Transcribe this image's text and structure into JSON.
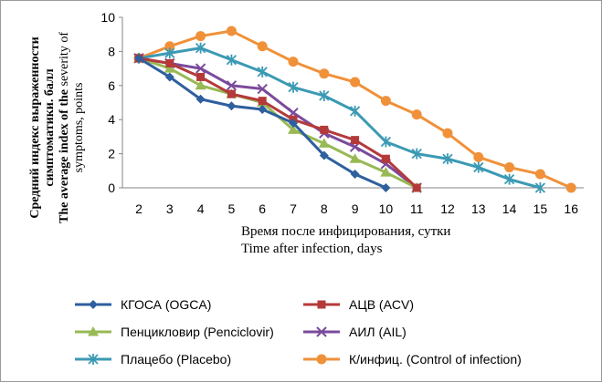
{
  "chart_data": {
    "type": "line",
    "x": [
      2,
      3,
      4,
      5,
      6,
      7,
      8,
      9,
      10,
      11,
      12,
      13,
      14,
      15,
      16
    ],
    "xlim": [
      2,
      16
    ],
    "ylim": [
      0,
      10
    ],
    "yticks": [
      0,
      2,
      4,
      6,
      8,
      10
    ],
    "xlabel_ru": "Время после инфицирования, сутки",
    "xlabel_en": "Time after infection, days",
    "ylabel_ru_line1": "Средний индекс выраженности",
    "ylabel_ru_line2": "симптоматики. балл",
    "ylabel_en_bold": "The average index of the",
    "ylabel_en_rest": " severity of",
    "ylabel_en_line2": "symptoms, points",
    "legend_position": "bottom",
    "series": [
      {
        "name": "КГОСА (OGCA)",
        "color": "#2e5f9e",
        "marker": "diamond",
        "x": [
          2,
          3,
          4,
          5,
          6,
          7,
          8,
          9,
          10
        ],
        "values": [
          7.6,
          6.5,
          5.2,
          4.8,
          4.6,
          3.8,
          1.9,
          0.8,
          0
        ]
      },
      {
        "name": "АЦВ (ACV)",
        "color": "#b43a3a",
        "marker": "square",
        "x": [
          2,
          3,
          4,
          5,
          6,
          7,
          8,
          9,
          10,
          11
        ],
        "values": [
          7.6,
          7.3,
          6.5,
          5.5,
          5.1,
          4.0,
          3.4,
          2.8,
          1.7,
          0
        ]
      },
      {
        "name": "Пенцикловир (Penciclovir)",
        "color": "#98b954",
        "marker": "triangle",
        "x": [
          2,
          3,
          4,
          5,
          6,
          7,
          8,
          9,
          10,
          11
        ],
        "values": [
          7.6,
          7.0,
          6.0,
          5.5,
          5.0,
          3.4,
          2.6,
          1.7,
          0.9,
          0
        ]
      },
      {
        "name": "АИЛ (AIL)",
        "color": "#7b4a9c",
        "marker": "x",
        "x": [
          2,
          3,
          4,
          5,
          6,
          7,
          8,
          9,
          10,
          11
        ],
        "values": [
          7.6,
          7.3,
          7.0,
          6.0,
          5.8,
          4.4,
          3.2,
          2.4,
          1.4,
          0
        ]
      },
      {
        "name": "Плацебо  (Placebo)",
        "color": "#3b9ab4",
        "marker": "asterisk",
        "x": [
          2,
          3,
          4,
          5,
          6,
          7,
          8,
          9,
          10,
          11,
          12,
          13,
          14,
          15
        ],
        "values": [
          7.6,
          7.9,
          8.2,
          7.5,
          6.8,
          5.9,
          5.4,
          4.5,
          2.7,
          2.0,
          1.7,
          1.2,
          0.5,
          0
        ]
      },
      {
        "name": "К/инфиц. (Control of infection)",
        "color": "#f0913a",
        "marker": "circle",
        "x": [
          2,
          3,
          4,
          5,
          6,
          7,
          8,
          9,
          10,
          11,
          12,
          13,
          14,
          15,
          16
        ],
        "values": [
          7.6,
          8.3,
          8.9,
          9.2,
          8.3,
          7.4,
          6.7,
          6.2,
          5.1,
          4.3,
          3.2,
          1.8,
          1.2,
          0.8,
          0
        ]
      }
    ]
  }
}
